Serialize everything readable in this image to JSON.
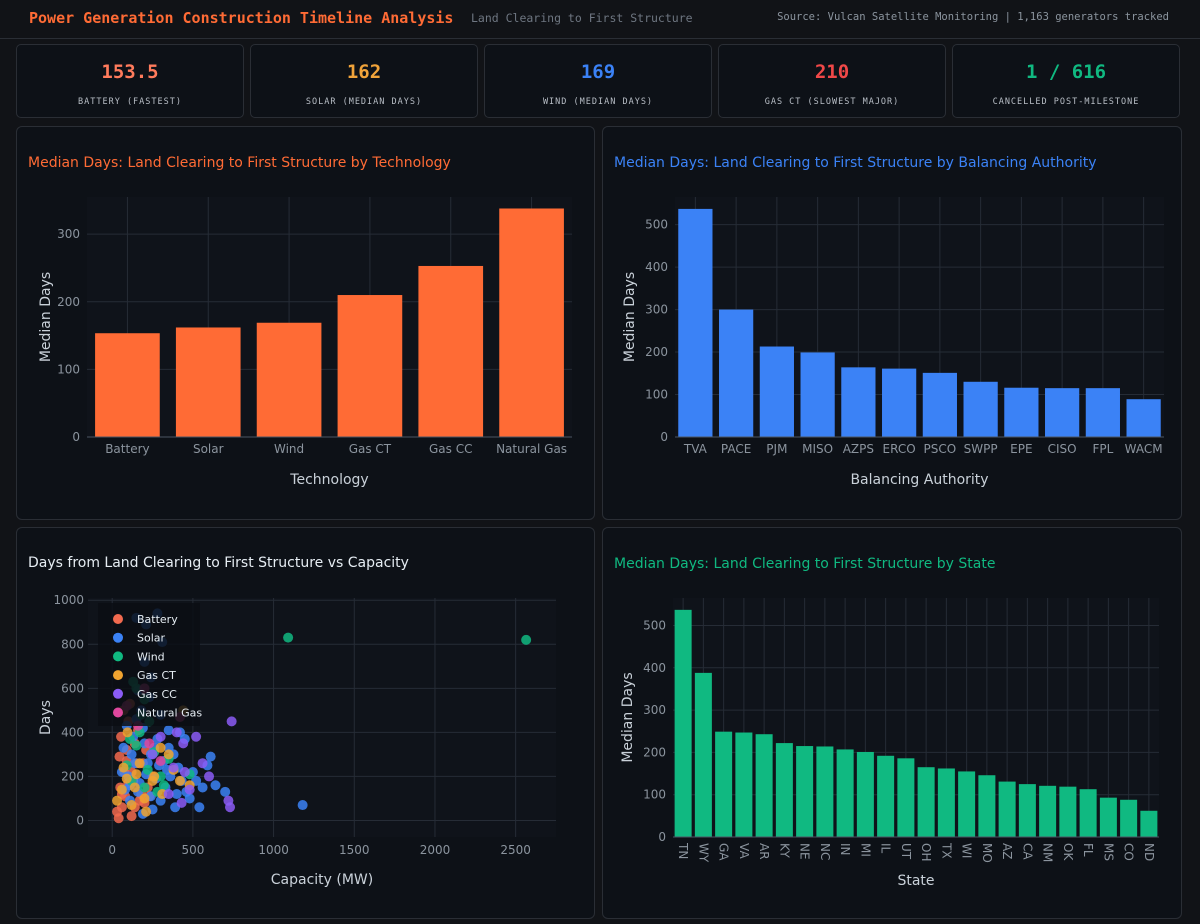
{
  "header": {
    "title": "Power Generation Construction Timeline Analysis",
    "subtitle": "Land Clearing to First Structure",
    "source": "Source: Vulcan Satellite Monitoring | 1,163 generators tracked"
  },
  "kpis": [
    {
      "value": "153.5",
      "label": "BATTERY (FASTEST)",
      "color": "#ff7b5c"
    },
    {
      "value": "162",
      "label": "SOLAR (MEDIAN DAYS)",
      "color": "#f0a33a"
    },
    {
      "value": "169",
      "label": "WIND (MEDIAN DAYS)",
      "color": "#3b82f6"
    },
    {
      "value": "210",
      "label": "GAS CT (SLOWEST MAJOR)",
      "color": "#f04848"
    },
    {
      "value": "1 / 616",
      "label": "CANCELLED POST-MILESTONE",
      "color": "#10b981"
    }
  ],
  "chart_data": [
    {
      "type": "bar",
      "title": "Median Days: Land Clearing to First Structure by Technology",
      "title_color": "#ff6b35",
      "color": "#ff6b35",
      "xlabel": "Technology",
      "ylabel": "Median Days",
      "categories": [
        "Battery",
        "Solar",
        "Wind",
        "Gas CT",
        "Gas CC",
        "Natural Gas"
      ],
      "values": [
        153.5,
        162,
        169,
        210,
        253,
        338
      ],
      "yticks": [
        0,
        100,
        200,
        300
      ],
      "ylim": [
        0,
        355
      ],
      "grid": true
    },
    {
      "type": "bar",
      "title": "Median Days: Land Clearing to First Structure by Balancing Authority",
      "title_color": "#3b82f6",
      "color": "#3b82f6",
      "xlabel": "Balancing Authority",
      "ylabel": "Median Days",
      "categories": [
        "TVA",
        "PACE",
        "PJM",
        "MISO",
        "AZPS",
        "ERCO",
        "PSCO",
        "SWPP",
        "EPE",
        "CISO",
        "FPL",
        "WACM"
      ],
      "values": [
        537,
        300,
        213,
        199,
        164,
        161,
        151,
        130,
        116,
        115,
        115,
        89
      ],
      "yticks": [
        0,
        100,
        200,
        300,
        400,
        500
      ],
      "ylim": [
        0,
        565
      ],
      "grid": true
    },
    {
      "type": "scatter",
      "title": "Days from Land Clearing to First Structure vs Capacity",
      "title_color": "#e6edf3",
      "xlabel": "Capacity (MW)",
      "ylabel": "Days",
      "xticks": [
        0,
        500,
        1000,
        1500,
        2000,
        2500
      ],
      "yticks": [
        0,
        200,
        400,
        600,
        800,
        1000
      ],
      "xlim": [
        -150,
        2750
      ],
      "ylim": [
        -75,
        1010
      ],
      "legend": "top-left",
      "grid": true,
      "series": [
        {
          "name": "Battery",
          "color": "#f26a4f",
          "points": [
            [
              40,
              10
            ],
            [
              60,
              60
            ],
            [
              80,
              110
            ],
            [
              100,
              170
            ],
            [
              120,
              220
            ],
            [
              150,
              260
            ],
            [
              50,
              150
            ],
            [
              90,
              320
            ],
            [
              180,
              120
            ],
            [
              70,
              500
            ],
            [
              110,
              530
            ],
            [
              200,
              80
            ],
            [
              130,
              180
            ],
            [
              160,
              410
            ],
            [
              30,
              40
            ],
            [
              220,
              150
            ],
            [
              90,
              270
            ],
            [
              140,
              350
            ],
            [
              60,
              120
            ],
            [
              250,
              200
            ],
            [
              170,
              90
            ],
            [
              100,
              450
            ],
            [
              45,
              290
            ],
            [
              210,
              320
            ],
            [
              75,
              220
            ],
            [
              120,
              20
            ],
            [
              190,
              260
            ],
            [
              55,
              380
            ],
            [
              140,
              60
            ],
            [
              230,
              110
            ]
          ]
        },
        {
          "name": "Solar",
          "color": "#3b82f6",
          "points": [
            [
              150,
              920
            ],
            [
              210,
              890
            ],
            [
              280,
              940
            ],
            [
              310,
              810
            ],
            [
              200,
              720
            ],
            [
              160,
              590
            ],
            [
              240,
              650
            ],
            [
              180,
              500
            ],
            [
              300,
              480
            ],
            [
              350,
              410
            ],
            [
              420,
              400
            ],
            [
              450,
              370
            ],
            [
              500,
              220
            ],
            [
              520,
              180
            ],
            [
              560,
              150
            ],
            [
              590,
              250
            ],
            [
              610,
              290
            ],
            [
              640,
              160
            ],
            [
              700,
              130
            ],
            [
              390,
              60
            ],
            [
              1180,
              70
            ],
            [
              460,
              130
            ],
            [
              340,
              230
            ],
            [
              120,
              300
            ],
            [
              100,
              200
            ],
            [
              80,
              140
            ],
            [
              60,
              220
            ],
            [
              220,
              260
            ],
            [
              260,
              330
            ],
            [
              190,
              420
            ],
            [
              130,
              380
            ],
            [
              90,
              430
            ],
            [
              270,
              190
            ],
            [
              330,
              150
            ],
            [
              380,
              300
            ],
            [
              410,
              240
            ],
            [
              170,
              170
            ],
            [
              240,
              110
            ],
            [
              300,
              90
            ],
            [
              360,
              200
            ],
            [
              140,
              260
            ],
            [
              110,
              90
            ],
            [
              200,
              350
            ],
            [
              250,
              50
            ],
            [
              320,
              270
            ],
            [
              430,
              180
            ],
            [
              480,
              100
            ],
            [
              540,
              60
            ],
            [
              280,
              370
            ],
            [
              150,
              460
            ],
            [
              230,
              560
            ],
            [
              70,
              330
            ],
            [
              190,
              30
            ],
            [
              400,
              120
            ],
            [
              350,
              330
            ],
            [
              210,
              210
            ],
            [
              160,
              130
            ],
            [
              290,
              250
            ],
            [
              110,
              160
            ],
            [
              240,
              300
            ]
          ]
        },
        {
          "name": "Wind",
          "color": "#10b981",
          "points": [
            [
              1090,
              830
            ],
            [
              2565,
              820
            ],
            [
              130,
              630
            ],
            [
              150,
              600
            ],
            [
              200,
              550
            ],
            [
              230,
              450
            ],
            [
              170,
              400
            ],
            [
              90,
              250
            ],
            [
              260,
              310
            ],
            [
              300,
              200
            ],
            [
              350,
              280
            ],
            [
              120,
              180
            ],
            [
              200,
              150
            ],
            [
              480,
              210
            ],
            [
              150,
              340
            ],
            [
              220,
              230
            ],
            [
              280,
              130
            ],
            [
              110,
              370
            ],
            [
              180,
              480
            ],
            [
              320,
              160
            ]
          ]
        },
        {
          "name": "Gas CT",
          "color": "#f0a330",
          "points": [
            [
              30,
              90
            ],
            [
              60,
              140
            ],
            [
              90,
              190
            ],
            [
              150,
              210
            ],
            [
              200,
              100
            ],
            [
              250,
              180
            ],
            [
              300,
              330
            ],
            [
              350,
              300
            ],
            [
              440,
              500
            ],
            [
              420,
              180
            ],
            [
              480,
              160
            ],
            [
              210,
              40
            ],
            [
              120,
              70
            ],
            [
              170,
              260
            ],
            [
              260,
              200
            ],
            [
              380,
              230
            ],
            [
              95,
              400
            ],
            [
              140,
              150
            ],
            [
              70,
              240
            ],
            [
              310,
              120
            ]
          ]
        },
        {
          "name": "Gas CC",
          "color": "#8b5cf6",
          "points": [
            [
              740,
              450
            ],
            [
              720,
              90
            ],
            [
              730,
              60
            ],
            [
              400,
              400
            ],
            [
              440,
              350
            ],
            [
              520,
              380
            ],
            [
              380,
              240
            ],
            [
              300,
              380
            ],
            [
              250,
              300
            ],
            [
              450,
              220
            ],
            [
              480,
              140
            ],
            [
              560,
              260
            ],
            [
              350,
              120
            ],
            [
              430,
              80
            ],
            [
              600,
              200
            ]
          ]
        },
        {
          "name": "Natural Gas",
          "color": "#e0479e",
          "points": [
            [
              90,
              520
            ],
            [
              160,
              430
            ],
            [
              230,
              350
            ],
            [
              300,
              270
            ],
            [
              420,
              470
            ],
            [
              200,
              600
            ]
          ]
        }
      ]
    },
    {
      "type": "bar",
      "title": "Median Days: Land Clearing to First Structure by State",
      "title_color": "#10b981",
      "color": "#10b981",
      "xlabel": "State",
      "ylabel": "Median Days",
      "categories": [
        "TN",
        "WY",
        "GA",
        "VA",
        "AR",
        "KY",
        "NE",
        "NC",
        "IN",
        "MI",
        "IL",
        "UT",
        "OH",
        "TX",
        "WI",
        "MO",
        "AZ",
        "CA",
        "NM",
        "OK",
        "FL",
        "MS",
        "CO",
        "ND"
      ],
      "values": [
        537,
        388,
        249,
        247,
        243,
        222,
        215,
        214,
        207,
        201,
        192,
        186,
        165,
        162,
        155,
        146,
        131,
        125,
        121,
        119,
        113,
        93,
        88,
        62
      ],
      "yticks": [
        0,
        100,
        200,
        300,
        400,
        500
      ],
      "ylim": [
        0,
        565
      ],
      "grid": true
    }
  ]
}
